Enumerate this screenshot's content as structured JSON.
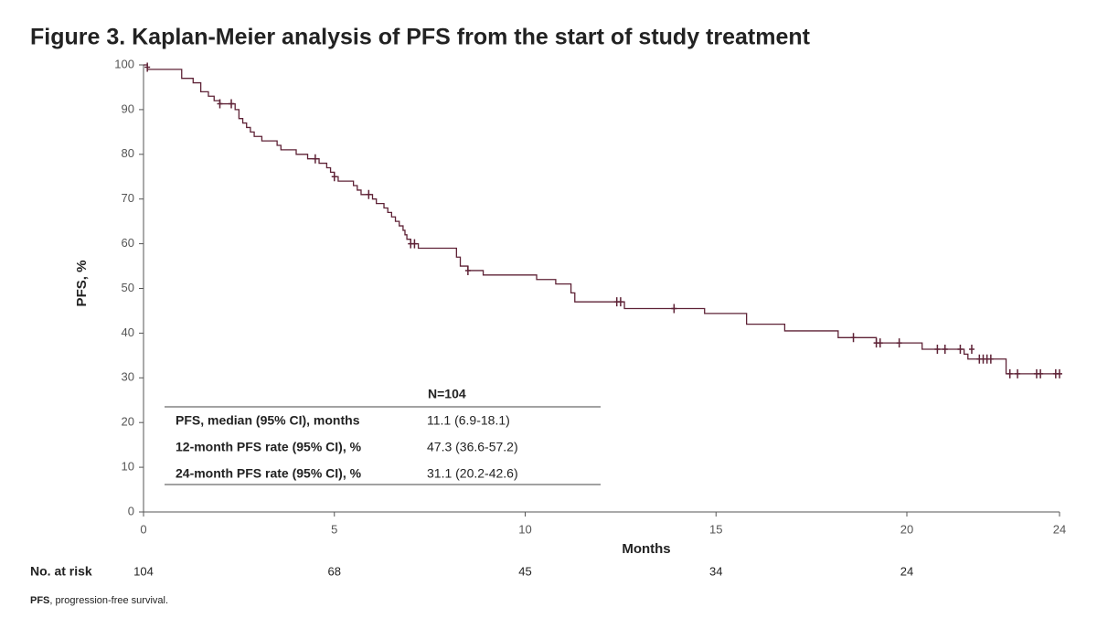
{
  "chart_data": {
    "type": "step",
    "title": "Figure 3. Kaplan-Meier analysis of PFS from the start of study treatment",
    "x_label": "Months",
    "y_label": "PFS, %",
    "xlim": [
      0,
      24
    ],
    "ylim": [
      0,
      100
    ],
    "xticks": [
      0,
      5,
      10,
      15,
      20,
      24
    ],
    "yticks": [
      0,
      10,
      20,
      30,
      40,
      50,
      60,
      70,
      80,
      90,
      100
    ],
    "color": "#5e2236",
    "series": [
      {
        "x": [
          0,
          0.1,
          1.0,
          1.3,
          1.5,
          1.7,
          1.85,
          2.0,
          2.4,
          2.5,
          2.6,
          2.7,
          2.8,
          2.9,
          3.1,
          3.5,
          3.6,
          4.0,
          4.3,
          4.6,
          4.8,
          4.9,
          5.0,
          5.1,
          5.5,
          5.6,
          5.7,
          6.0,
          6.1,
          6.3,
          6.4,
          6.5,
          6.6,
          6.7,
          6.8,
          6.85,
          6.9,
          7.0,
          7.2,
          8.2,
          8.3,
          8.5,
          8.9,
          10.3,
          10.8,
          11.2,
          11.3,
          12.6,
          14.7,
          15.8,
          16.8,
          18.2,
          19.2,
          20.4,
          21.5,
          21.6,
          22.6
        ],
        "values": [
          100,
          99,
          97,
          96,
          94,
          93,
          92,
          91.3,
          90,
          88,
          87,
          86,
          85,
          84,
          83,
          82,
          81,
          80,
          79,
          78,
          77,
          76,
          75,
          74,
          73,
          72,
          71,
          70,
          69,
          68,
          67,
          66,
          65,
          64,
          63,
          62,
          61,
          60,
          59,
          57,
          55,
          54,
          53,
          52,
          51,
          49,
          47,
          45.5,
          44.4,
          42,
          40.5,
          39,
          37.8,
          36.4,
          35.3,
          34.2,
          30.9
        ]
      }
    ],
    "censored": {
      "x": [
        0.1,
        2.0,
        2.3,
        4.5,
        5.0,
        5.9,
        7.0,
        7.1,
        8.5,
        12.4,
        12.5,
        13.9,
        18.6,
        19.2,
        19.3,
        19.8,
        20.8,
        21.0,
        21.4,
        21.7,
        21.9,
        22.0,
        22.1,
        22.2,
        22.7,
        22.9,
        23.4,
        23.5,
        23.9,
        24.0
      ],
      "values": [
        99.5,
        91.3,
        91.3,
        79,
        75,
        71,
        60,
        60,
        54,
        47,
        47,
        45.5,
        39,
        37.8,
        37.8,
        37.8,
        36.4,
        36.4,
        36.4,
        36.4,
        34.2,
        34.2,
        34.2,
        34.2,
        30.9,
        30.9,
        30.9,
        30.9,
        30.9,
        30.9
      ]
    },
    "summary_table": {
      "header": "N=104",
      "rows": [
        [
          "PFS, median (95% CI), months",
          "11.1 (6.9-18.1)"
        ],
        [
          "12-month PFS rate (95% CI), %",
          "47.3 (36.6-57.2)"
        ],
        [
          "24-month PFS rate (95% CI), %",
          "31.1 (20.2-42.6)"
        ]
      ]
    },
    "risk_table": {
      "label": "No. at risk",
      "x": [
        0,
        5,
        10,
        15,
        20
      ],
      "counts": [
        "104",
        "68",
        "45",
        "34",
        "24"
      ]
    },
    "footnote": {
      "term": "PFS",
      "text": ", progression-free survival."
    }
  }
}
